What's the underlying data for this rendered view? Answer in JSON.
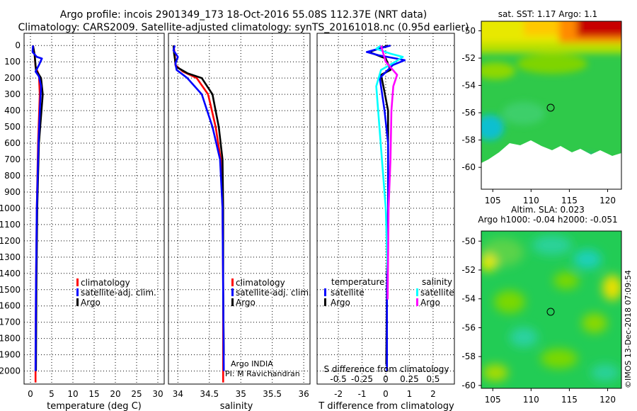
{
  "title": {
    "line1": "Argo profile: incois 2901349_173 18-Oct-2016 55.08S 112.37E (NRT data)",
    "line2": "Climatology: CARS2009. Satellite-adjusted climatology: synTS_20161018.nc (0.95d earlier)"
  },
  "depth_ticks": [
    0,
    100,
    200,
    300,
    400,
    500,
    600,
    700,
    800,
    900,
    1000,
    1100,
    1200,
    1300,
    1400,
    1500,
    1600,
    1700,
    1800,
    1900,
    2000
  ],
  "colors": {
    "climatology": "#ff0000",
    "satellite": "#0000ff",
    "argo": "#000000",
    "sal_satellite": "#00ffff",
    "sal_argo": "#ff00ff"
  },
  "chart_data": [
    {
      "type": "line",
      "title": "",
      "xlabel": "temperature (deg C)",
      "ylabel": "",
      "xlim": [
        -1.5,
        31.5
      ],
      "ylim": [
        2080,
        -75
      ],
      "xticks": [
        0,
        5,
        10,
        15,
        20,
        25,
        30
      ],
      "legend": {
        "position": "bottom-right",
        "entries": [
          "climatology",
          "satellite-adj. clim.",
          "Argo"
        ]
      },
      "series": [
        {
          "name": "climatology",
          "color": "#ff0000",
          "points": [
            [
              1.2,
              2070
            ],
            [
              1.2,
              1900
            ],
            [
              1.3,
              1500
            ],
            [
              1.5,
              1000
            ],
            [
              1.8,
              600
            ],
            [
              2.2,
              300
            ],
            [
              2.0,
              180
            ],
            [
              1.2,
              130
            ],
            [
              1.0,
              60
            ],
            [
              0.6,
              0
            ]
          ]
        },
        {
          "name": "Argo",
          "color": "#000000",
          "points": [
            [
              1.3,
              2000
            ],
            [
              1.4,
              1500
            ],
            [
              1.6,
              1000
            ],
            [
              2.0,
              600
            ],
            [
              2.6,
              400
            ],
            [
              2.9,
              300
            ],
            [
              2.5,
              200
            ],
            [
              1.3,
              150
            ],
            [
              1.0,
              60
            ],
            [
              0.6,
              0
            ]
          ]
        },
        {
          "name": "satellite-adj. clim.",
          "color": "#0000ff",
          "points": [
            [
              1.2,
              2000
            ],
            [
              1.3,
              1500
            ],
            [
              1.5,
              1000
            ],
            [
              1.9,
              600
            ],
            [
              2.3,
              350
            ],
            [
              2.5,
              250
            ],
            [
              2.0,
              190
            ],
            [
              1.2,
              160
            ],
            [
              2.0,
              120
            ],
            [
              2.7,
              80
            ],
            [
              1.5,
              70
            ],
            [
              0.5,
              40
            ],
            [
              0.6,
              0
            ]
          ]
        }
      ]
    },
    {
      "type": "line",
      "title": "",
      "xlabel": "salinity",
      "ylabel": "",
      "xlim": [
        33.85,
        36.1
      ],
      "ylim": [
        2080,
        -75
      ],
      "xticks": [
        34,
        34.5,
        35,
        35.5,
        36
      ],
      "legend": {
        "position": "bottom-right",
        "entries": [
          "climatology",
          "satellite-adj. clim.",
          "Argo"
        ]
      },
      "annotations": [
        "Argo INDIA",
        "PI: M Ravichandran"
      ],
      "series": [
        {
          "name": "climatology",
          "color": "#ff0000",
          "points": [
            [
              34.72,
              2070
            ],
            [
              34.72,
              1500
            ],
            [
              34.71,
              1000
            ],
            [
              34.68,
              700
            ],
            [
              34.6,
              500
            ],
            [
              34.48,
              300
            ],
            [
              34.3,
              200
            ],
            [
              34.08,
              160
            ],
            [
              33.96,
              120
            ],
            [
              33.95,
              50
            ],
            [
              33.93,
              0
            ]
          ]
        },
        {
          "name": "Argo",
          "color": "#000000",
          "points": [
            [
              34.73,
              1900
            ],
            [
              34.72,
              1500
            ],
            [
              34.72,
              1000
            ],
            [
              34.71,
              700
            ],
            [
              34.65,
              500
            ],
            [
              34.55,
              300
            ],
            [
              34.38,
              200
            ],
            [
              34.15,
              170
            ],
            [
              33.97,
              130
            ],
            [
              33.94,
              50
            ],
            [
              33.93,
              0
            ]
          ]
        },
        {
          "name": "satellite-adj. clim.",
          "color": "#0000ff",
          "points": [
            [
              34.73,
              2000
            ],
            [
              34.72,
              1500
            ],
            [
              34.71,
              1000
            ],
            [
              34.67,
              700
            ],
            [
              34.55,
              500
            ],
            [
              34.38,
              300
            ],
            [
              34.15,
              200
            ],
            [
              33.98,
              150
            ],
            [
              33.96,
              110
            ],
            [
              34.0,
              70
            ],
            [
              33.93,
              30
            ],
            [
              33.95,
              0
            ]
          ]
        }
      ]
    },
    {
      "type": "line",
      "title": "",
      "xlabel": "T difference from climatology",
      "xlabel_top": "S difference from climatology",
      "ylabel": "",
      "xlim": [
        -2.9,
        2.9
      ],
      "ylim": [
        2080,
        -75
      ],
      "xticks": [
        -2,
        -1,
        0,
        1,
        2
      ],
      "xticks_top": [
        -0.5,
        -0.25,
        0,
        0.25,
        0.5
      ],
      "legend": {
        "position": "bottom",
        "groups": [
          {
            "title": "temperature",
            "entries": [
              "satellite",
              "Argo"
            ]
          },
          {
            "title": "salinity",
            "entries": [
              "satellite",
              "Argo"
            ]
          }
        ]
      },
      "series": [
        {
          "name": "temperature Argo",
          "color": "#000000",
          "points": [
            [
              0.02,
              1960
            ],
            [
              0.05,
              1500
            ],
            [
              0.1,
              1000
            ],
            [
              0.1,
              600
            ],
            [
              0.1,
              400
            ],
            [
              -0.1,
              250
            ],
            [
              -0.2,
              180
            ],
            [
              0.2,
              150
            ],
            [
              0.0,
              80
            ],
            [
              -0.7,
              40
            ],
            [
              0.1,
              0
            ]
          ]
        },
        {
          "name": "temperature satellite",
          "color": "#0000ff",
          "points": [
            [
              0.05,
              2000
            ],
            [
              0.05,
              1500
            ],
            [
              0.1,
              1000
            ],
            [
              0.1,
              600
            ],
            [
              -0.05,
              400
            ],
            [
              -0.2,
              250
            ],
            [
              -0.25,
              200
            ],
            [
              0.3,
              120
            ],
            [
              0.8,
              90
            ],
            [
              -0.3,
              60
            ],
            [
              -0.8,
              40
            ],
            [
              0.2,
              0
            ]
          ]
        },
        {
          "name": "salinity satellite",
          "color": "#00ffff",
          "points": [
            [
              0.02,
              1400
            ],
            [
              0.0,
              1000
            ],
            [
              -0.04,
              700
            ],
            [
              -0.08,
              400
            ],
            [
              -0.1,
              250
            ],
            [
              -0.05,
              150
            ],
            [
              0.1,
              100
            ],
            [
              0.18,
              70
            ],
            [
              0.05,
              50
            ],
            [
              -0.1,
              20
            ],
            [
              -0.05,
              0
            ]
          ]
        },
        {
          "name": "salinity Argo",
          "color": "#ff00ff",
          "points": [
            [
              0.02,
              1560
            ],
            [
              0.03,
              1000
            ],
            [
              0.05,
              700
            ],
            [
              0.06,
              400
            ],
            [
              0.08,
              250
            ],
            [
              0.12,
              180
            ],
            [
              0.0,
              100
            ],
            [
              -0.05,
              0
            ]
          ]
        }
      ]
    }
  ],
  "maps": {
    "sst_title": "sat. SST: 1.17 Argo: 1.1",
    "sla_title1": "Altim. SLA: 0.023",
    "sla_title2": "Argo h1000: -0.04 h2000: -0.051",
    "lat_ticks": [
      "-50",
      "-52",
      "-54",
      "-56",
      "-58",
      "-60"
    ],
    "lon_ticks": [
      "105",
      "110",
      "115",
      "120"
    ]
  },
  "watermark": "©IMOS 13-Dec-2018 07:09:54"
}
